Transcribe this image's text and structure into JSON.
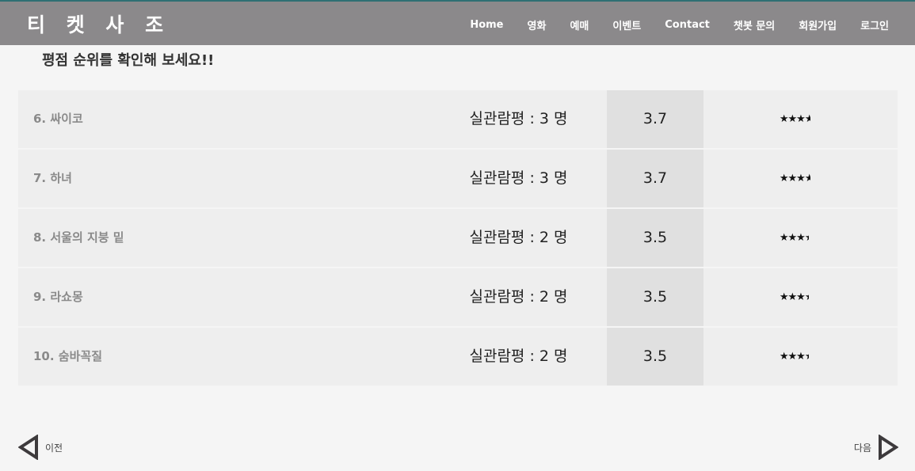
{
  "header": {
    "logo": "티 켓 사 조",
    "nav": [
      "Home",
      "영화",
      "예매",
      "이벤트",
      "Contact",
      "챗봇 문의",
      "회원가입",
      "로그인"
    ]
  },
  "page": {
    "heading": "평점 순위를 확인해 보세요!!"
  },
  "rankings": [
    {
      "title": "6. 싸이코",
      "reviews": "실관람평 : 3 명",
      "score": "3.7",
      "rating": 3.7
    },
    {
      "title": "7. 하녀",
      "reviews": "실관람평 : 3 명",
      "score": "3.7",
      "rating": 3.7
    },
    {
      "title": "8. 서울의 지붕 밑",
      "reviews": "실관람평 : 2 명",
      "score": "3.5",
      "rating": 3.5
    },
    {
      "title": "9. 라쇼몽",
      "reviews": "실관람평 : 2 명",
      "score": "3.5",
      "rating": 3.5
    },
    {
      "title": "10. 숨바꼭질",
      "reviews": "실관람평 : 2 명",
      "score": "3.5",
      "rating": 3.5
    }
  ],
  "pager": {
    "prev_label": "이전",
    "next_label": "다음",
    "prev_icon": "triangle-left-icon",
    "next_icon": "triangle-right-icon"
  },
  "colors": {
    "header_bg": "#8b898b",
    "header_accent": "#2f6f73",
    "row_bg": "#eeeeee",
    "score_bg": "#e0e0e0"
  }
}
